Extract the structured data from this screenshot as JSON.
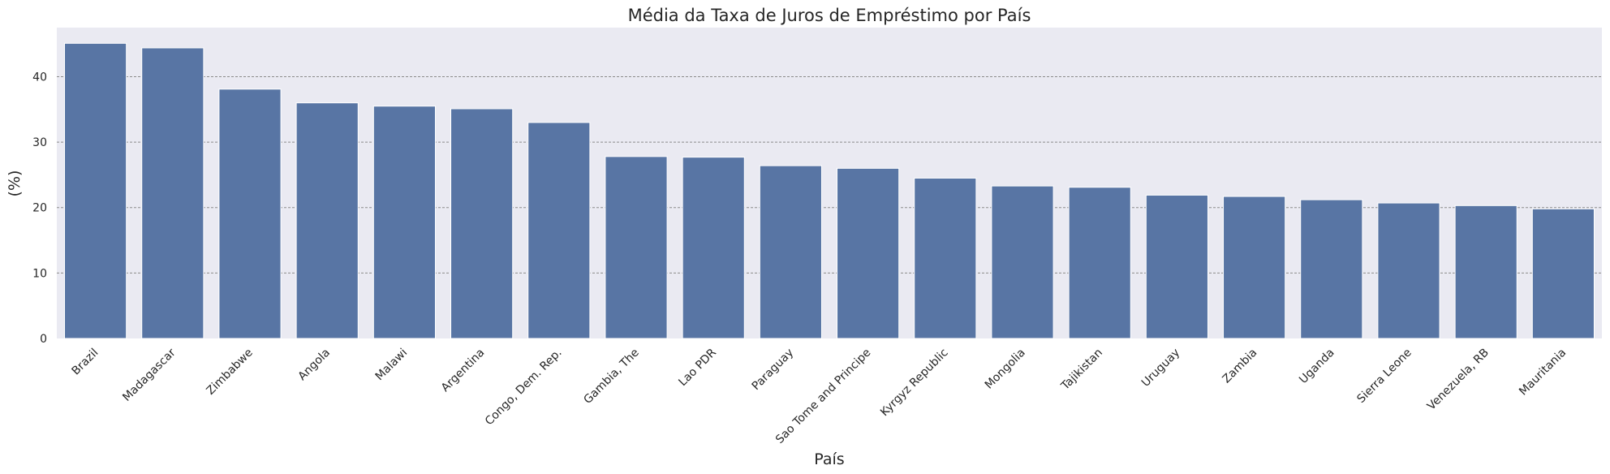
{
  "chart_data": {
    "type": "bar",
    "title": "Média da Taxa de Juros de Empréstimo por País",
    "xlabel": "País",
    "ylabel": "(%)",
    "ylim": [
      0,
      47.5
    ],
    "yticks": [
      0,
      10,
      20,
      30,
      40
    ],
    "grid": true,
    "legend": "none",
    "colors": {
      "bar": "#5875a4",
      "plot_bg": "#eaeaf2",
      "grid": "#8c8c8c"
    },
    "categories": [
      "Brazil",
      "Madagascar",
      "Zimbabwe",
      "Angola",
      "Malawi",
      "Argentina",
      "Congo, Dem. Rep.",
      "Gambia, The",
      "Lao PDR",
      "Paraguay",
      "Sao Tome and Principe",
      "Kyrgyz Republic",
      "Mongolia",
      "Tajikistan",
      "Uruguay",
      "Zambia",
      "Uganda",
      "Sierra Leone",
      "Venezuela, RB",
      "Mauritania"
    ],
    "values": [
      45.1,
      44.4,
      38.1,
      36.0,
      35.5,
      35.1,
      33.0,
      27.8,
      27.7,
      26.4,
      26.0,
      24.5,
      23.3,
      23.1,
      21.9,
      21.7,
      21.2,
      20.7,
      20.3,
      19.8
    ]
  }
}
